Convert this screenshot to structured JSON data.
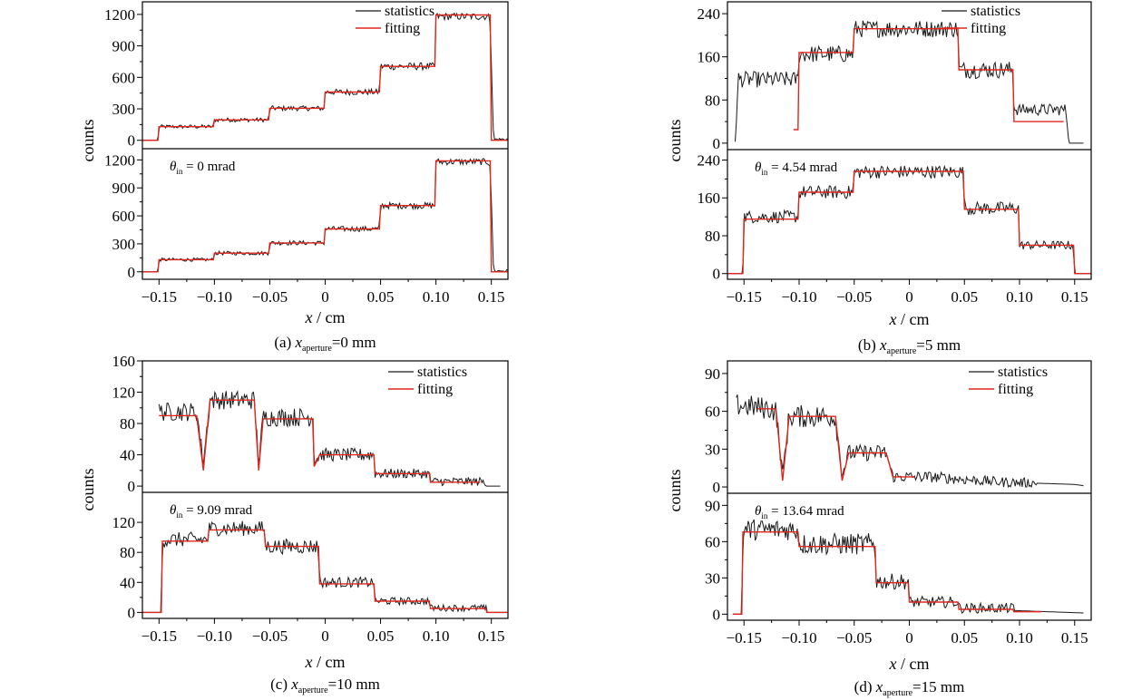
{
  "colors": {
    "statistics": "#1a1a1a",
    "fitting": "#e0261b",
    "axis": "#000000"
  },
  "chart_data": [
    {
      "type": "line",
      "caption": {
        "prefix": "(a)",
        "var": "x",
        "sub": "aperture",
        "suffix": "=0 mm"
      },
      "ylabel": "counts",
      "xlabel_var": "x",
      "xlabel_unit": " / cm",
      "xlim": [
        -0.165,
        0.165
      ],
      "xticks": [
        -0.15,
        -0.1,
        -0.05,
        0,
        0.05,
        0.1,
        0.15
      ],
      "xtick_labels": [
        "−0.15",
        "−0.10",
        "−0.05",
        "0",
        "0.05",
        "0.10",
        "0.15"
      ],
      "legend": {
        "statistics": "statistics",
        "fitting": "fitting",
        "position": "top-right"
      },
      "panels": [
        {
          "ylim": [
            -80,
            1320
          ],
          "yticks": [
            0,
            300,
            600,
            900,
            1200
          ],
          "ytick_labels": [
            "0",
            "300",
            "600",
            "900",
            "1200"
          ],
          "fitting": {
            "x": [
              -0.165,
              -0.151,
              -0.15,
              -0.101,
              -0.1,
              -0.051,
              -0.05,
              -0.001,
              0,
              0.049,
              0.05,
              0.099,
              0.1,
              0.149,
              0.15,
              0.165
            ],
            "y": [
              0,
              0,
              130,
              130,
              195,
              195,
              305,
              305,
              460,
              460,
              705,
              705,
              1195,
              1195,
              0,
              0
            ]
          },
          "statistics": {
            "x": [
              -0.165,
              -0.151,
              -0.15,
              -0.101,
              -0.1,
              -0.051,
              -0.05,
              -0.001,
              0,
              0.049,
              0.05,
              0.099,
              0.1,
              0.147,
              0.149,
              0.152,
              0.165
            ],
            "y": [
              0,
              0,
              130,
              130,
              195,
              195,
              305,
              305,
              460,
              460,
              705,
              705,
              1180,
              1180,
              1150,
              10,
              10
            ],
            "noise": 35
          }
        },
        {
          "ylim": [
            -80,
            1320
          ],
          "yticks": [
            0,
            300,
            600,
            900,
            1200
          ],
          "ytick_labels": [
            "0",
            "300",
            "600",
            "900",
            "1200"
          ],
          "theta": {
            "var": "θ",
            "sub": "in",
            "text": " = 0 mrad"
          },
          "fitting": {
            "x": [
              -0.165,
              -0.151,
              -0.15,
              -0.101,
              -0.1,
              -0.051,
              -0.05,
              -0.001,
              0,
              0.049,
              0.05,
              0.099,
              0.1,
              0.149,
              0.15,
              0.165
            ],
            "y": [
              0,
              0,
              130,
              130,
              200,
              200,
              310,
              310,
              460,
              460,
              710,
              710,
              1190,
              1190,
              0,
              0
            ]
          },
          "statistics": {
            "x": [
              -0.165,
              -0.151,
              -0.15,
              -0.101,
              -0.1,
              -0.051,
              -0.05,
              -0.001,
              0,
              0.049,
              0.05,
              0.099,
              0.1,
              0.147,
              0.149,
              0.152,
              0.165
            ],
            "y": [
              0,
              0,
              130,
              130,
              200,
              200,
              310,
              310,
              460,
              460,
              710,
              710,
              1180,
              1180,
              1150,
              10,
              10
            ],
            "noise": 35
          }
        }
      ]
    },
    {
      "type": "line",
      "caption": {
        "prefix": "(b)",
        "var": "x",
        "sub": "aperture",
        "suffix": "=5 mm"
      },
      "ylabel": "counts",
      "xlabel_var": "x",
      "xlabel_unit": " / cm",
      "xlim": [
        -0.165,
        0.165
      ],
      "xticks": [
        -0.15,
        -0.1,
        -0.05,
        0,
        0.05,
        0.1,
        0.15
      ],
      "xtick_labels": [
        "−0.15",
        "−0.10",
        "−0.05",
        "0",
        "0.05",
        "0.10",
        "0.15"
      ],
      "legend": {
        "statistics": "statistics",
        "fitting": "fitting",
        "position": "top-right"
      },
      "panels": [
        {
          "ylim": [
            -12,
            262
          ],
          "yticks": [
            0,
            80,
            160,
            240
          ],
          "ytick_labels": [
            "0",
            "80",
            "160",
            "240"
          ],
          "fitting": {
            "x": [
              -0.105,
              -0.101,
              -0.1,
              -0.051,
              -0.05,
              -0.001,
              0,
              0.044,
              0.045,
              0.094,
              0.095,
              0.14
            ],
            "y": [
              25,
              25,
              168,
              168,
              212,
              212,
              212,
              212,
              136,
              136,
              40,
              40
            ]
          },
          "statistics": {
            "x": [
              -0.158,
              -0.155,
              -0.152,
              -0.101,
              -0.1,
              -0.051,
              -0.05,
              -0.001,
              0,
              0.044,
              0.045,
              0.094,
              0.095,
              0.142,
              0.145,
              0.158
            ],
            "y": [
              5,
              120,
              118,
              118,
              165,
              165,
              212,
              212,
              212,
              212,
              136,
              136,
              62,
              62,
              0,
              0
            ],
            "noise": 16
          }
        },
        {
          "ylim": [
            -12,
            262
          ],
          "yticks": [
            0,
            80,
            160,
            240
          ],
          "ytick_labels": [
            "0",
            "80",
            "160",
            "240"
          ],
          "theta": {
            "var": "θ",
            "sub": "in",
            "text": " = 4.54 mrad"
          },
          "fitting": {
            "x": [
              -0.165,
              -0.151,
              -0.15,
              -0.101,
              -0.1,
              -0.051,
              -0.05,
              -0.001,
              0,
              0.049,
              0.05,
              0.099,
              0.1,
              0.149,
              0.15,
              0.165
            ],
            "y": [
              0,
              0,
              115,
              115,
              172,
              172,
              216,
              216,
              216,
              216,
              136,
              136,
              60,
              60,
              0,
              0
            ]
          },
          "statistics": {
            "x": [
              -0.165,
              -0.151,
              -0.15,
              -0.101,
              -0.1,
              -0.051,
              -0.05,
              -0.001,
              0,
              0.049,
              0.05,
              0.099,
              0.1,
              0.149,
              0.15,
              0.165
            ],
            "y": [
              0,
              0,
              120,
              120,
              172,
              172,
              215,
              215,
              215,
              215,
              138,
              138,
              60,
              60,
              0,
              0
            ],
            "noise": 14
          }
        }
      ]
    },
    {
      "type": "line",
      "caption": {
        "prefix": "(c)",
        "var": "x",
        "sub": "aperture",
        "suffix": "=10 mm"
      },
      "ylabel": "counts",
      "xlabel_var": "x",
      "xlabel_unit": " / cm",
      "xlim": [
        -0.165,
        0.165
      ],
      "xticks": [
        -0.15,
        -0.1,
        -0.05,
        0,
        0.05,
        0.1,
        0.15
      ],
      "xtick_labels": [
        "−0.15",
        "−0.10",
        "−0.05",
        "0",
        "0.05",
        "0.10",
        "0.15"
      ],
      "legend": {
        "statistics": "statistics",
        "fitting": "fitting",
        "position": "top-right"
      },
      "panels": [
        {
          "ylim": [
            -8,
            160
          ],
          "yticks": [
            0,
            40,
            80,
            120,
            160
          ],
          "ytick_labels": [
            "0",
            "40",
            "80",
            "120",
            "160"
          ],
          "fitting": {
            "x": [
              -0.15,
              -0.116,
              -0.11,
              -0.104,
              -0.1,
              -0.064,
              -0.06,
              -0.056,
              -0.051,
              -0.011,
              -0.01,
              -0.005,
              0.044,
              0.045,
              0.094,
              0.095,
              0.14
            ],
            "y": [
              90,
              90,
              20,
              110,
              110,
              110,
              20,
              86,
              86,
              86,
              25,
              40,
              40,
              16,
              16,
              5,
              5
            ]
          },
          "statistics": {
            "x": [
              -0.15,
              -0.116,
              -0.11,
              -0.104,
              -0.1,
              -0.064,
              -0.06,
              -0.056,
              -0.051,
              -0.011,
              -0.01,
              -0.005,
              0.044,
              0.045,
              0.094,
              0.095,
              0.142,
              0.145,
              0.158
            ],
            "y": [
              95,
              95,
              30,
              110,
              110,
              110,
              30,
              88,
              88,
              88,
              30,
              40,
              40,
              16,
              16,
              6,
              6,
              0,
              0
            ],
            "noise": 12
          }
        },
        {
          "ylim": [
            -8,
            160
          ],
          "yticks": [
            0,
            40,
            80,
            120
          ],
          "ytick_labels": [
            "0",
            "40",
            "80",
            "120"
          ],
          "theta": {
            "var": "θ",
            "sub": "in",
            "text": " = 9.09 mrad"
          },
          "fitting": {
            "x": [
              -0.165,
              -0.148,
              -0.147,
              -0.106,
              -0.105,
              -0.055,
              -0.054,
              -0.006,
              -0.005,
              0.044,
              0.045,
              0.094,
              0.095,
              0.145,
              0.146,
              0.165
            ],
            "y": [
              0,
              0,
              95,
              95,
              110,
              110,
              88,
              88,
              38,
              38,
              15,
              15,
              5,
              5,
              0,
              0
            ]
          },
          "statistics": {
            "x": [
              -0.165,
              -0.148,
              -0.147,
              -0.106,
              -0.105,
              -0.055,
              -0.054,
              -0.006,
              -0.005,
              0.044,
              0.045,
              0.094,
              0.095,
              0.145,
              0.146,
              0.165
            ],
            "y": [
              0,
              0,
              97,
              97,
              112,
              112,
              88,
              88,
              40,
              40,
              15,
              15,
              6,
              6,
              0,
              0
            ],
            "noise": 10
          }
        }
      ]
    },
    {
      "type": "line",
      "caption": {
        "prefix": "(d)",
        "var": "x",
        "sub": "aperture",
        "suffix": "=15 mm"
      },
      "ylabel": "counts",
      "xlabel_var": "x",
      "xlabel_unit": " / cm",
      "xlim": [
        -0.165,
        0.165
      ],
      "xticks": [
        -0.15,
        -0.1,
        -0.05,
        0,
        0.05,
        0.1,
        0.15
      ],
      "xtick_labels": [
        "−0.15",
        "−0.10",
        "−0.05",
        "0",
        "0.05",
        "0.10",
        "0.15"
      ],
      "legend": {
        "statistics": "statistics",
        "fitting": "fitting",
        "position": "top-right"
      },
      "panels": [
        {
          "ylim": [
            -5,
            100
          ],
          "yticks": [
            0,
            30,
            60,
            90
          ],
          "ytick_labels": [
            "0",
            "30",
            "60",
            "90"
          ],
          "fitting": {
            "x": [
              -0.138,
              -0.121,
              -0.115,
              -0.109,
              -0.106,
              -0.067,
              -0.061,
              -0.055,
              -0.051,
              -0.021,
              -0.015,
              0.005
            ],
            "y": [
              62,
              62,
              5,
              56,
              56,
              56,
              5,
              27,
              27,
              27,
              8,
              8
            ]
          },
          "statistics": {
            "x": [
              -0.157,
              -0.125,
              -0.121,
              -0.115,
              -0.109,
              -0.106,
              -0.067,
              -0.061,
              -0.055,
              -0.051,
              -0.021,
              -0.015,
              0.02,
              0.08,
              0.15,
              0.158
            ],
            "y": [
              65,
              62,
              60,
              10,
              56,
              56,
              56,
              10,
              27,
              27,
              27,
              8,
              8,
              4,
              2,
              1
            ],
            "noise": 9
          }
        },
        {
          "ylim": [
            -5,
            100
          ],
          "yticks": [
            0,
            30,
            60,
            90
          ],
          "ytick_labels": [
            "0",
            "30",
            "60",
            "90"
          ],
          "theta": {
            "var": "θ",
            "sub": "in",
            "text": " = 13.64 mrad"
          },
          "fitting": {
            "x": [
              -0.16,
              -0.152,
              -0.151,
              -0.101,
              -0.1,
              -0.061,
              -0.06,
              -0.031,
              -0.03,
              -0.001,
              0,
              0.044,
              0.045,
              0.094,
              0.095,
              0.12
            ],
            "y": [
              0,
              0,
              68,
              68,
              56,
              56,
              56,
              56,
              26,
              26,
              10,
              10,
              4,
              4,
              2,
              2
            ]
          },
          "statistics": {
            "x": [
              -0.16,
              -0.152,
              -0.151,
              -0.101,
              -0.1,
              -0.061,
              -0.06,
              -0.031,
              -0.03,
              -0.001,
              0,
              0.044,
              0.045,
              0.094,
              0.095,
              0.158
            ],
            "y": [
              0,
              0,
              70,
              70,
              58,
              58,
              58,
              58,
              27,
              27,
              10,
              10,
              5,
              5,
              3,
              1
            ],
            "noise": 9
          }
        }
      ]
    }
  ]
}
